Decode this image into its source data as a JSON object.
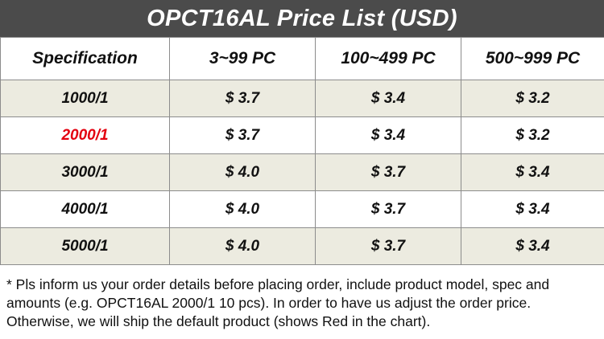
{
  "title": "OPCT16AL Price List  (USD)",
  "columns": [
    "Specification",
    "3~99 PC",
    "100~499 PC",
    "500~999 PC"
  ],
  "rows": [
    {
      "spec": "1000/1",
      "p1": "$ 3.7",
      "p2": "$ 3.4",
      "p3": "$ 3.2"
    },
    {
      "spec": "2000/1",
      "p1": "$ 3.7",
      "p2": "$ 3.4",
      "p3": "$ 3.2"
    },
    {
      "spec": "3000/1",
      "p1": "$ 4.0",
      "p2": "$ 3.7",
      "p3": "$ 3.4"
    },
    {
      "spec": "4000/1",
      "p1": "$ 4.0",
      "p2": "$ 3.7",
      "p3": "$ 3.4"
    },
    {
      "spec": "5000/1",
      "p1": "$ 4.0",
      "p2": "$ 3.7",
      "p3": "$ 3.4"
    }
  ],
  "colors": {
    "header_bg": "#4b4b4b",
    "default_highlight": "#e3000f",
    "row_shade": "#ecebe0"
  },
  "note": "* Pls inform us your order details before placing order, include product model, spec and amounts (e.g. OPCT16AL 2000/1 10 pcs). In order to have us adjust the order price. Otherwise, we will ship the default product (shows Red in the chart)."
}
